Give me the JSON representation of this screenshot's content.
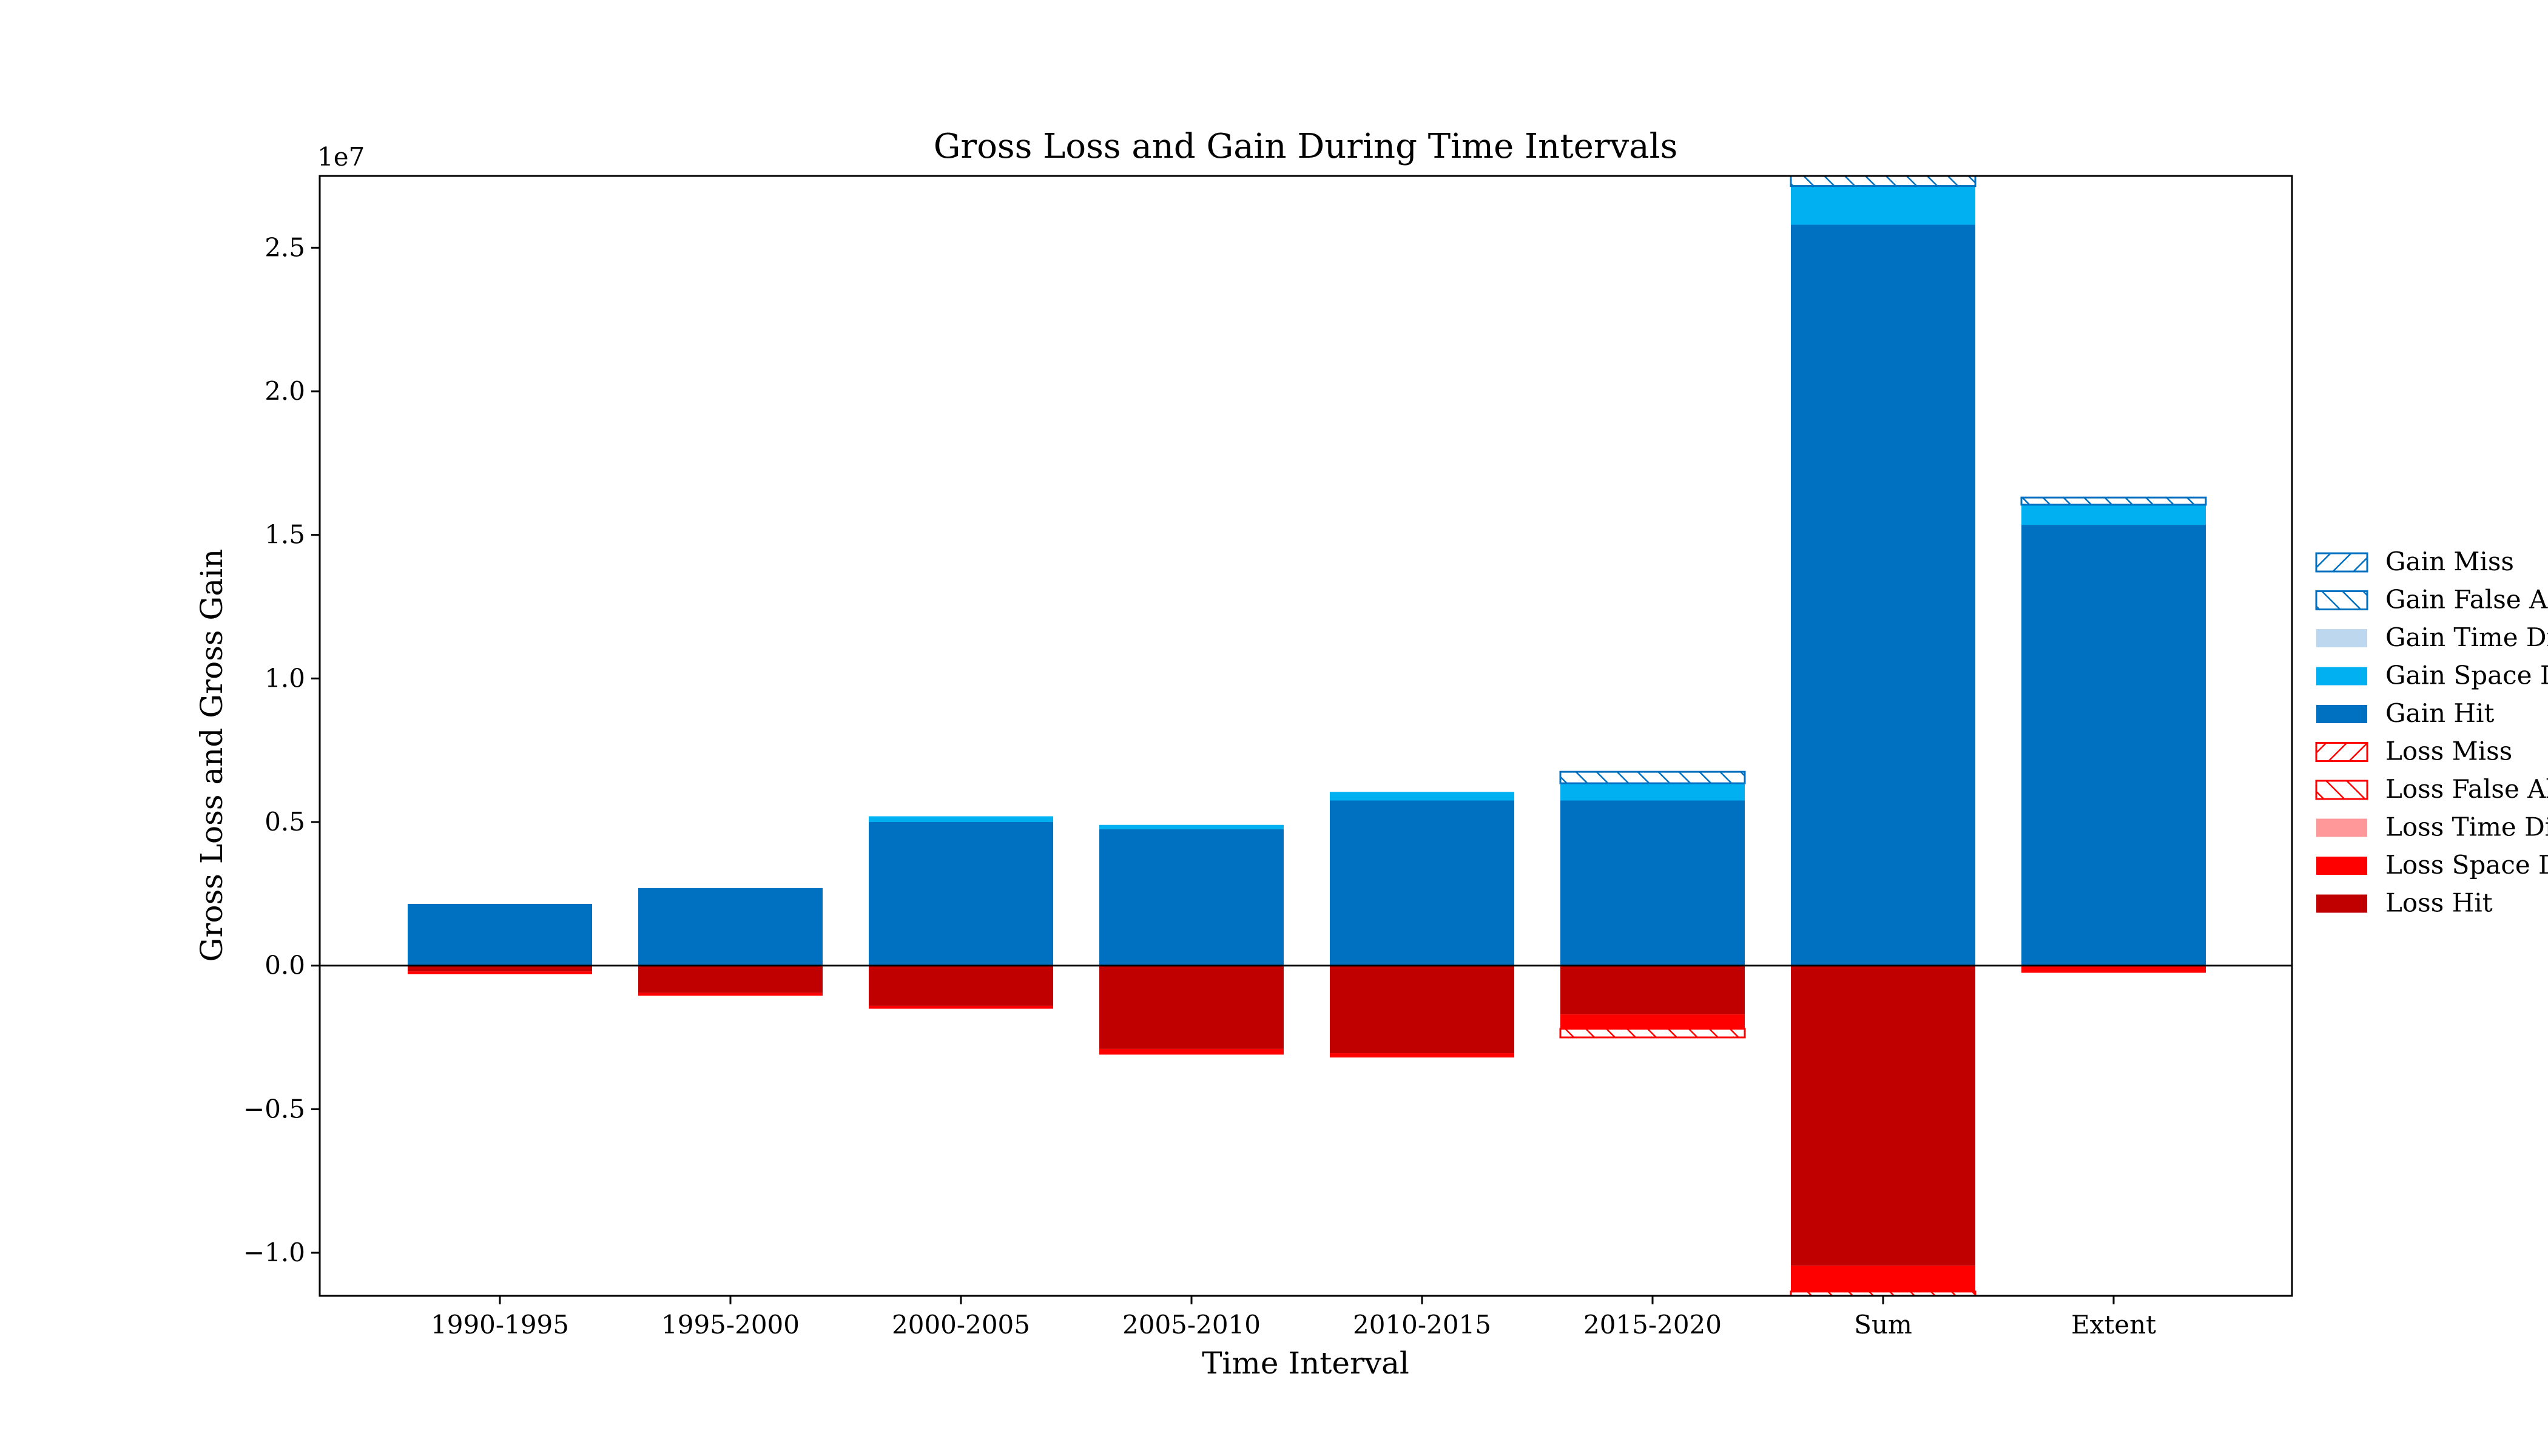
{
  "chart_data": {
    "type": "bar",
    "title": "Gross Loss and Gain During Time Intervals",
    "xlabel": "Time Interval",
    "ylabel": "Gross Loss and Gross Gain",
    "y_offset_label": "1e7",
    "y_scale": 10000000,
    "ylim": [
      -11500000,
      27500000
    ],
    "yticks": [
      -10000000,
      -5000000,
      0,
      5000000,
      10000000,
      15000000,
      20000000,
      25000000
    ],
    "ytick_labels": [
      "−1.0",
      "−0.5",
      "0.0",
      "0.5",
      "1.0",
      "1.5",
      "2.0",
      "2.5"
    ],
    "categories": [
      "1990-1995",
      "1995-2000",
      "2000-2005",
      "2005-2010",
      "2010-2015",
      "2015-2020",
      "Sum",
      "Extent"
    ],
    "grid": false,
    "legend_position": "outside-right",
    "series": [
      {
        "name": "Gain Miss",
        "side": "gain",
        "style": "hatch-back",
        "color": "#0070c0",
        "values": [
          0,
          0,
          0,
          0,
          0,
          0,
          0,
          0
        ]
      },
      {
        "name": "Gain False Alarm",
        "side": "gain",
        "style": "hatch-fwd",
        "color": "#0070c0",
        "values": [
          0,
          0,
          0,
          0,
          0,
          400000,
          350000,
          250000
        ]
      },
      {
        "name": "Gain Time Difference",
        "side": "gain",
        "style": "solid",
        "color": "#bdd7ee",
        "values": [
          0,
          0,
          0,
          0,
          0,
          0,
          0,
          0
        ]
      },
      {
        "name": "Gain Space Difference",
        "side": "gain",
        "style": "solid",
        "color": "#00b0f0",
        "values": [
          0,
          0,
          200000,
          150000,
          300000,
          600000,
          1350000,
          700000
        ]
      },
      {
        "name": "Gain Hit",
        "side": "gain",
        "style": "solid",
        "color": "#0070c0",
        "values": [
          2150000,
          2700000,
          5000000,
          4750000,
          5750000,
          5750000,
          25800000,
          15350000
        ]
      },
      {
        "name": "Loss Miss",
        "side": "loss",
        "style": "hatch-back",
        "color": "#ff0000",
        "values": [
          0,
          0,
          0,
          0,
          0,
          0,
          0,
          0
        ]
      },
      {
        "name": "Loss False Alarm",
        "side": "loss",
        "style": "hatch-fwd",
        "color": "#ff0000",
        "values": [
          0,
          0,
          0,
          0,
          0,
          300000,
          150000,
          0
        ]
      },
      {
        "name": "Loss Time Difference",
        "side": "loss",
        "style": "solid",
        "color": "#ff9999",
        "values": [
          0,
          0,
          0,
          0,
          0,
          0,
          0,
          0
        ]
      },
      {
        "name": "Loss Space Difference",
        "side": "loss",
        "style": "solid",
        "color": "#ff0000",
        "values": [
          100000,
          100000,
          100000,
          200000,
          150000,
          500000,
          900000,
          250000
        ]
      },
      {
        "name": "Loss Hit",
        "side": "loss",
        "style": "solid",
        "color": "#c00000",
        "values": [
          200000,
          950000,
          1400000,
          2900000,
          3050000,
          1700000,
          10450000,
          0
        ]
      }
    ]
  }
}
